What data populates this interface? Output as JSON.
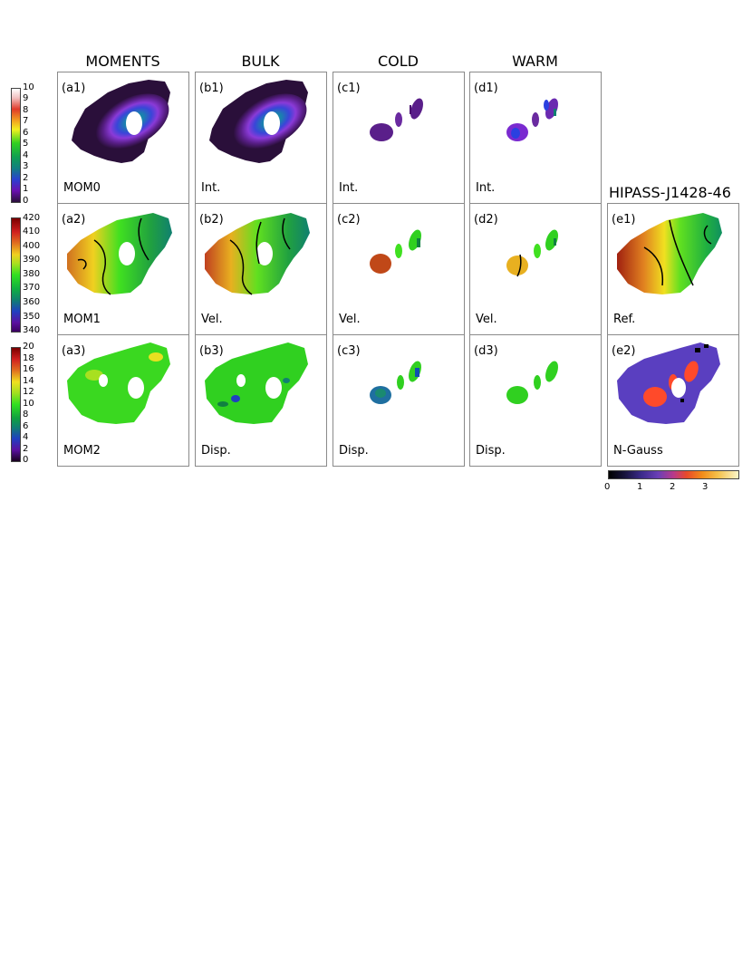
{
  "column_titles": [
    "MOMENTS",
    "BULK",
    "COLD",
    "WARM"
  ],
  "reference_title": "HIPASS-J1428-46",
  "panels": {
    "a1": {
      "tag": "(a1)",
      "label": "MOM0"
    },
    "b1": {
      "tag": "(b1)",
      "label": "Int."
    },
    "c1": {
      "tag": "(c1)",
      "label": "Int."
    },
    "d1": {
      "tag": "(d1)",
      "label": "Int."
    },
    "a2": {
      "tag": "(a2)",
      "label": "MOM1"
    },
    "b2": {
      "tag": "(b2)",
      "label": "Vel."
    },
    "c2": {
      "tag": "(c2)",
      "label": "Vel."
    },
    "d2": {
      "tag": "(d2)",
      "label": "Vel."
    },
    "e1": {
      "tag": "(e1)",
      "label": "Ref."
    },
    "a3": {
      "tag": "(a3)",
      "label": "MOM2"
    },
    "b3": {
      "tag": "(b3)",
      "label": "Disp."
    },
    "c3": {
      "tag": "(c3)",
      "label": "Disp."
    },
    "d3": {
      "tag": "(d3)",
      "label": "Disp."
    },
    "e2": {
      "tag": "(e2)",
      "label": "N-Gauss"
    }
  },
  "colorbars": {
    "intensity": {
      "ticks": [
        "10",
        "9",
        "8",
        "7",
        "6",
        "5",
        "4",
        "3",
        "2",
        "1",
        "0"
      ]
    },
    "velocity": {
      "ticks": [
        "420",
        "410",
        "400",
        "390",
        "380",
        "370",
        "360",
        "350",
        "340"
      ]
    },
    "dispersion": {
      "ticks": [
        "20",
        "18",
        "16",
        "14",
        "12",
        "10",
        "8",
        "6",
        "4",
        "2",
        "0"
      ]
    },
    "ngauss": {
      "ticks": [
        "0",
        "1",
        "2",
        "3"
      ]
    }
  },
  "colors": {
    "intensity_background": "#2a0f3a",
    "velocity_green": "#33dd22",
    "ngauss_low": "#5a3fc0",
    "ngauss_high": "#ff4a2a",
    "contour": "#000000",
    "panel_border": "#8a8a8a"
  }
}
